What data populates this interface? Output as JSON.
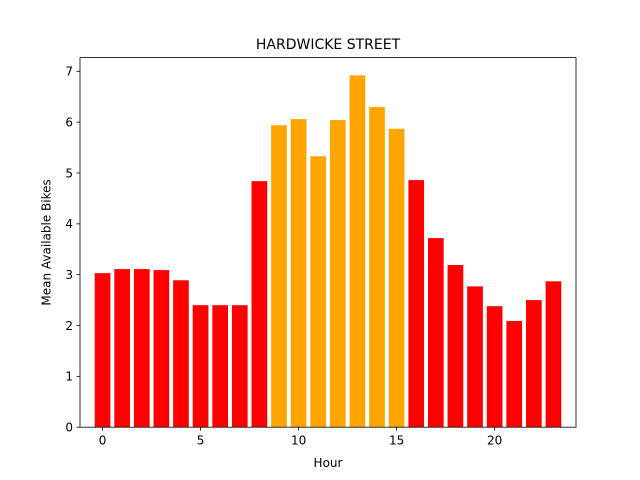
{
  "chart_data": {
    "type": "bar",
    "title": "HARDWICKE STREET",
    "xlabel": "Hour",
    "ylabel": "Mean Available Bikes",
    "x": [
      0,
      1,
      2,
      3,
      4,
      5,
      6,
      7,
      8,
      9,
      10,
      11,
      12,
      13,
      14,
      15,
      16,
      17,
      18,
      19,
      20,
      21,
      22,
      23
    ],
    "values": [
      3.03,
      3.11,
      3.11,
      3.09,
      2.89,
      2.4,
      2.4,
      2.4,
      4.84,
      5.94,
      6.06,
      5.33,
      6.04,
      6.92,
      6.3,
      5.87,
      4.86,
      3.72,
      3.19,
      2.77,
      2.38,
      2.09,
      2.5,
      2.87
    ],
    "bar_colors": [
      "#ff0000",
      "#ff0000",
      "#ff0000",
      "#ff0000",
      "#ff0000",
      "#ff0000",
      "#ff0000",
      "#ff0000",
      "#ff0000",
      "#ffa500",
      "#ffa500",
      "#ffa500",
      "#ffa500",
      "#ffa500",
      "#ffa500",
      "#ffa500",
      "#ff0000",
      "#ff0000",
      "#ff0000",
      "#ff0000",
      "#ff0000",
      "#ff0000",
      "#ff0000",
      "#ff0000"
    ],
    "xticks": [
      0,
      5,
      10,
      15,
      20
    ],
    "yticks": [
      0,
      1,
      2,
      3,
      4,
      5,
      6,
      7
    ],
    "xlim": [
      -1.15,
      24.15
    ],
    "ylim": [
      0,
      7.27
    ],
    "grid": false,
    "legend": "none"
  }
}
